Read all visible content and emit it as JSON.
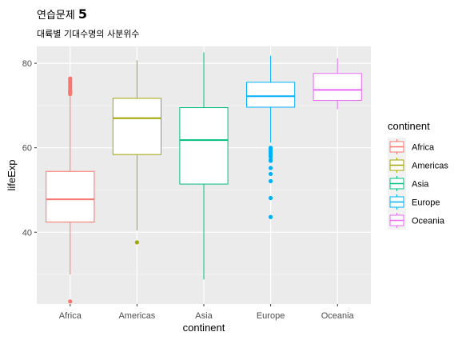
{
  "title": {
    "text": "연습문제",
    "number": "5"
  },
  "subtitle": "대륙별 기대수명의 사분위수",
  "chart_data": {
    "type": "boxplot",
    "title": "연습문제 5",
    "subtitle": "대륙별 기대수명의 사분위수",
    "xlabel": "continent",
    "ylabel": "lifeExp",
    "ylim": [
      23,
      84
    ],
    "yticks": [
      40,
      60,
      80
    ],
    "grid": true,
    "legend_title": "continent",
    "legend_position": "right",
    "categories": [
      "Africa",
      "Americas",
      "Asia",
      "Europe",
      "Oceania"
    ],
    "colors": {
      "Africa": "#F8766D",
      "Americas": "#A3A500",
      "Asia": "#00BF7D",
      "Europe": "#00B0F6",
      "Oceania": "#E76BF3"
    },
    "boxes": [
      {
        "name": "Africa",
        "min": 30,
        "q1": 42.4,
        "median": 47.8,
        "q3": 54.4,
        "max": 72.3,
        "outliers": [
          23.6,
          72.7,
          73.0,
          73.2,
          73.4,
          73.6,
          74.0,
          74.5,
          75.0,
          75.5,
          76.0,
          76.4
        ]
      },
      {
        "name": "Americas",
        "min": 40.4,
        "q1": 58.4,
        "median": 67.0,
        "q3": 71.7,
        "max": 80.7,
        "outliers": [
          37.6
        ]
      },
      {
        "name": "Asia",
        "min": 28.8,
        "q1": 51.4,
        "median": 61.8,
        "q3": 69.5,
        "max": 82.6,
        "outliers": []
      },
      {
        "name": "Europe",
        "min": 61.2,
        "q1": 69.6,
        "median": 72.2,
        "q3": 75.5,
        "max": 81.8,
        "outliers": [
          43.6,
          48.1,
          52.1,
          53.8,
          55.2,
          56.9,
          57.1,
          57.8,
          58.2,
          58.6,
          59.0,
          59.4,
          59.8,
          60.0
        ]
      },
      {
        "name": "Oceania",
        "min": 69.1,
        "q1": 71.2,
        "median": 73.7,
        "q3": 77.6,
        "max": 81.2,
        "outliers": []
      }
    ]
  }
}
